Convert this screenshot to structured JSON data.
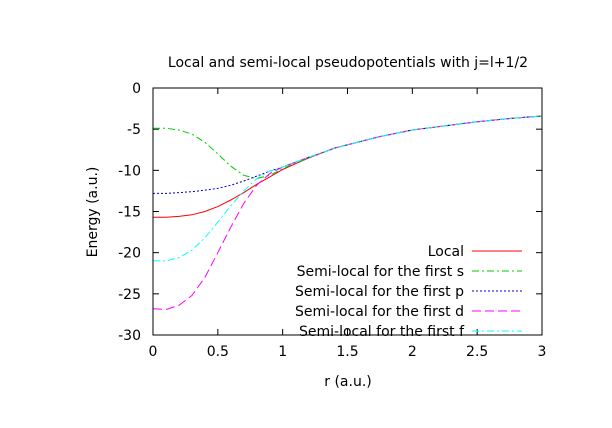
{
  "chart_data": {
    "type": "line",
    "title": "Local and semi-local pseudopotentials with j=l+1/2",
    "xlabel": "r (a.u.)",
    "ylabel": "Energy (a.u.)",
    "xlim": [
      0,
      3
    ],
    "ylim": [
      -30,
      0
    ],
    "x_ticks": [
      0,
      0.5,
      1,
      1.5,
      2,
      2.5,
      3
    ],
    "x_tick_labels": [
      "0",
      "0.5",
      "1",
      "1.5",
      "2",
      "2.5",
      "3"
    ],
    "y_ticks": [
      0,
      -5,
      -10,
      -15,
      -20,
      -25,
      -30
    ],
    "y_tick_labels": [
      "0",
      "-5",
      "-10",
      "-15",
      "-20",
      "-25",
      "-30"
    ],
    "grid": false,
    "legend_position": "bottom-right",
    "series": [
      {
        "name": "Local",
        "color": "#ff0000",
        "dash": "solid",
        "x": [
          0,
          0.1,
          0.2,
          0.3,
          0.4,
          0.5,
          0.6,
          0.7,
          0.8,
          0.9,
          1.0,
          1.1,
          1.2,
          1.3,
          1.4,
          1.5,
          1.75,
          2.0,
          2.25,
          2.5,
          2.75,
          3.0
        ],
        "y": [
          -15.7,
          -15.7,
          -15.6,
          -15.4,
          -15.0,
          -14.4,
          -13.6,
          -12.7,
          -11.7,
          -10.8,
          -9.9,
          -9.2,
          -8.5,
          -7.9,
          -7.3,
          -6.9,
          -5.9,
          -5.1,
          -4.6,
          -4.1,
          -3.7,
          -3.4
        ]
      },
      {
        "name": "Semi-local for the first s",
        "color": "#00cc00",
        "dash": "dash-dot",
        "x": [
          0,
          0.1,
          0.2,
          0.3,
          0.4,
          0.5,
          0.6,
          0.7,
          0.8,
          0.9,
          1.0,
          1.1,
          1.2,
          1.3,
          1.4,
          1.5,
          1.75,
          2.0,
          2.25,
          2.5,
          2.75,
          3.0
        ],
        "y": [
          -4.9,
          -4.9,
          -5.1,
          -5.6,
          -6.6,
          -8.0,
          -9.5,
          -10.6,
          -11.0,
          -10.6,
          -9.8,
          -9.1,
          -8.5,
          -7.9,
          -7.3,
          -6.9,
          -5.9,
          -5.1,
          -4.6,
          -4.1,
          -3.7,
          -3.4
        ]
      },
      {
        "name": "Semi-local for the first p",
        "color": "#0000cc",
        "dash": "dotted",
        "x": [
          0,
          0.1,
          0.2,
          0.3,
          0.4,
          0.5,
          0.6,
          0.7,
          0.8,
          0.9,
          1.0,
          1.1,
          1.2,
          1.3,
          1.4,
          1.5,
          1.75,
          2.0,
          2.25,
          2.5,
          2.75,
          3.0
        ],
        "y": [
          -12.8,
          -12.8,
          -12.7,
          -12.6,
          -12.4,
          -12.2,
          -11.8,
          -11.3,
          -10.7,
          -10.1,
          -9.6,
          -9.0,
          -8.4,
          -7.9,
          -7.3,
          -6.9,
          -5.9,
          -5.1,
          -4.6,
          -4.1,
          -3.7,
          -3.4
        ]
      },
      {
        "name": "Semi-local for the first d",
        "color": "#ff00ff",
        "dash": "long-dash",
        "x": [
          0,
          0.1,
          0.2,
          0.3,
          0.4,
          0.5,
          0.6,
          0.7,
          0.8,
          0.9,
          1.0,
          1.1,
          1.2,
          1.3,
          1.4,
          1.5,
          1.75,
          2.0,
          2.25,
          2.5,
          2.75,
          3.0
        ],
        "y": [
          -26.8,
          -26.9,
          -26.4,
          -25.2,
          -23.0,
          -20.0,
          -16.9,
          -14.0,
          -11.8,
          -10.4,
          -9.6,
          -9.0,
          -8.4,
          -7.9,
          -7.3,
          -6.9,
          -5.9,
          -5.1,
          -4.6,
          -4.1,
          -3.7,
          -3.4
        ]
      },
      {
        "name": "Semi-local for the first f",
        "color": "#00ffff",
        "dash": "dash-dot",
        "x": [
          0,
          0.1,
          0.2,
          0.3,
          0.4,
          0.5,
          0.6,
          0.7,
          0.8,
          0.9,
          1.0,
          1.1,
          1.2,
          1.3,
          1.4,
          1.5,
          1.75,
          2.0,
          2.25,
          2.5,
          2.75,
          3.0
        ],
        "y": [
          -21.0,
          -21.0,
          -20.6,
          -19.7,
          -18.2,
          -16.3,
          -14.3,
          -12.5,
          -11.0,
          -10.1,
          -9.6,
          -9.0,
          -8.4,
          -7.9,
          -7.3,
          -6.9,
          -5.9,
          -5.1,
          -4.6,
          -4.1,
          -3.7,
          -3.4
        ]
      }
    ]
  }
}
